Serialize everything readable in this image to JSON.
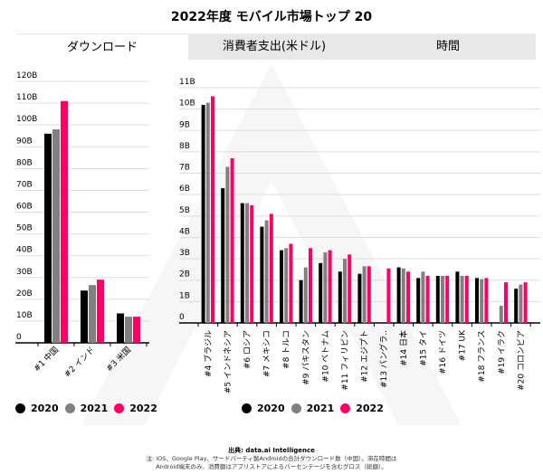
{
  "title": "2022年度 モバイル市場トップ 20",
  "tabs": [
    {
      "label": "ダウンロード",
      "active": true
    },
    {
      "label": "消費者支出(米ドル)",
      "active": false
    },
    {
      "label": "時間",
      "active": false
    }
  ],
  "colors": {
    "2020": "#000000",
    "2021": "#808080",
    "2022": "#ff0066",
    "grid": "#dddddd",
    "tab_bg": "#e8e8e8"
  },
  "legend": [
    "2020",
    "2021",
    "2022"
  ],
  "footer": {
    "source": "出典: data.ai Intelligence",
    "note": "注: iOS、Google Play、サードパーティ製Androidの合計ダウンロード数（中国）。滞在時間はAndroid端末のみ、消費額はアプリストアによるパーセンテージを含むグロス（総額）。"
  },
  "chart_data": [
    {
      "type": "bar",
      "categories": [
        "#1 中国",
        "#2 インド",
        "#3 米国"
      ],
      "series": [
        {
          "name": "2020",
          "values": [
            96,
            24,
            13.5
          ]
        },
        {
          "name": "2021",
          "values": [
            98,
            26.5,
            12
          ]
        },
        {
          "name": "2022",
          "values": [
            111,
            29,
            12
          ]
        }
      ],
      "yticks": [
        "0",
        "10B",
        "20B",
        "30B",
        "40B",
        "50B",
        "60B",
        "70B",
        "80B",
        "90B",
        "100B",
        "110B",
        "120B"
      ],
      "ylim": [
        0,
        120
      ],
      "yunit": "B",
      "grid": true,
      "legend": "bottom-left"
    },
    {
      "type": "bar",
      "categories": [
        "#4 ブラジル",
        "#5 インドネシア",
        "#6 ロシア",
        "#7 メキシコ",
        "#8 トルコ",
        "#9 パキスタン",
        "#10 ベトナム",
        "#11 フィリピン",
        "#12 エジプト",
        "#13 バングラ..",
        "#14 日本",
        "#15 タイ",
        "#16 ドイツ",
        "#17 UK",
        "#18 フランス",
        "#19 イラク",
        "#20 コロンビア"
      ],
      "series": [
        {
          "name": "2020",
          "values": [
            10.2,
            6.3,
            5.6,
            4.5,
            3.4,
            2.0,
            2.8,
            2.4,
            2.3,
            null,
            2.6,
            2.1,
            2.2,
            2.4,
            2.1,
            null,
            1.6
          ]
        },
        {
          "name": "2021",
          "values": [
            10.3,
            7.3,
            5.6,
            4.8,
            3.5,
            2.6,
            3.3,
            3.0,
            2.65,
            null,
            2.55,
            2.4,
            2.2,
            2.2,
            2.05,
            0.8,
            1.8
          ]
        },
        {
          "name": "2022",
          "values": [
            10.6,
            7.7,
            5.5,
            5.1,
            3.7,
            3.5,
            3.4,
            3.2,
            2.65,
            2.55,
            2.4,
            2.2,
            2.2,
            2.2,
            2.1,
            1.9,
            1.9
          ]
        }
      ],
      "yticks": [
        "0",
        "1B",
        "2B",
        "3B",
        "4B",
        "5B",
        "6B",
        "7B",
        "8B",
        "9B",
        "10B",
        "11B"
      ],
      "ylim": [
        0,
        11
      ],
      "yunit": "B",
      "grid": true,
      "legend": "bottom-center"
    }
  ]
}
